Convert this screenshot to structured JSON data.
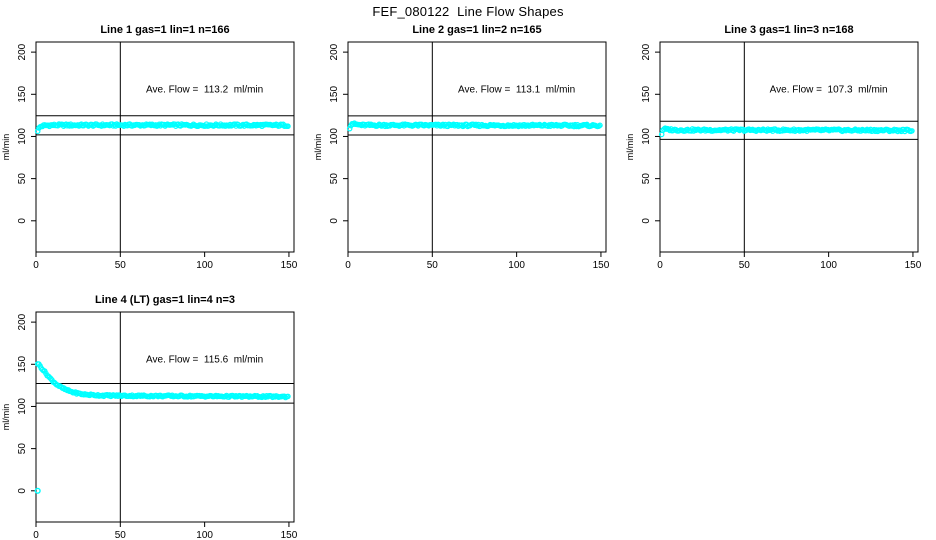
{
  "header": {
    "title": "FEF_080122  Line Flow Shapes"
  },
  "colors": {
    "marker": "#00FFFF",
    "axis": "#000000",
    "background": "#ffffff"
  },
  "chart_data": [
    {
      "type": "scatter",
      "title": "Line 1 gas=1 lin=1 n=166",
      "annotation": "Ave. Flow =  113.2  ml/min",
      "avg_flow": 113.2,
      "n": 166,
      "units": "ml/min",
      "ylabel": "ml/min",
      "xlabel": "",
      "x_ticks": [
        0,
        50,
        100,
        150
      ],
      "y_ticks": [
        0,
        50,
        100,
        150,
        200
      ],
      "x_box_range": [
        0,
        153
      ],
      "y_box_range": [
        -37,
        212
      ],
      "vline_x": 50,
      "hlines": [
        124.5,
        101.9
      ],
      "annotation_pos": [
        100,
        152
      ],
      "x_start": 1,
      "x_end": 150,
      "band_jitter": 1.3,
      "series_profile": [
        [
          1,
          107
        ],
        [
          2,
          110.5
        ],
        [
          3,
          112
        ],
        [
          5,
          113
        ],
        [
          10,
          113.4
        ],
        [
          60,
          113.5
        ],
        [
          150,
          113.3
        ]
      ],
      "extra_points": [],
      "seed": 1
    },
    {
      "type": "scatter",
      "title": "Line 2 gas=1 lin=2 n=165",
      "annotation": "Ave. Flow =  113.1  ml/min",
      "avg_flow": 113.1,
      "n": 165,
      "units": "ml/min",
      "ylabel": "ml/min",
      "xlabel": "",
      "x_ticks": [
        0,
        50,
        100,
        150
      ],
      "y_ticks": [
        0,
        50,
        100,
        150,
        200
      ],
      "x_box_range": [
        0,
        153
      ],
      "y_box_range": [
        -37,
        212
      ],
      "vline_x": 50,
      "hlines": [
        124.4,
        101.8
      ],
      "annotation_pos": [
        100,
        152
      ],
      "x_start": 1,
      "x_end": 150,
      "band_jitter": 1.3,
      "series_profile": [
        [
          1,
          110.5
        ],
        [
          2,
          115.5
        ],
        [
          4,
          114.5
        ],
        [
          8,
          113.4
        ],
        [
          60,
          113.2
        ],
        [
          150,
          113.0
        ]
      ],
      "extra_points": [],
      "seed": 2
    },
    {
      "type": "scatter",
      "title": "Line 3 gas=1 lin=3 n=168",
      "annotation": "Ave. Flow =  107.3  ml/min",
      "avg_flow": 107.3,
      "n": 168,
      "units": "ml/min",
      "ylabel": "ml/min",
      "xlabel": "",
      "x_ticks": [
        0,
        50,
        100,
        150
      ],
      "y_ticks": [
        0,
        50,
        100,
        150,
        200
      ],
      "x_box_range": [
        0,
        153
      ],
      "y_box_range": [
        -37,
        212
      ],
      "vline_x": 50,
      "hlines": [
        118.0,
        96.6
      ],
      "annotation_pos": [
        100,
        152
      ],
      "x_start": 1,
      "x_end": 150,
      "band_jitter": 1.3,
      "series_profile": [
        [
          1,
          103
        ],
        [
          2,
          109.5
        ],
        [
          4,
          108.3
        ],
        [
          10,
          107.6
        ],
        [
          80,
          107.5
        ],
        [
          150,
          107.2
        ]
      ],
      "extra_points": [],
      "seed": 3
    },
    {
      "type": "scatter",
      "title": "Line 4 (LT) gas=1 lin=4 n=3",
      "annotation": "Ave. Flow =  115.6  ml/min",
      "avg_flow": 115.6,
      "n": 3,
      "units": "ml/min",
      "ylabel": "ml/min",
      "xlabel": "",
      "x_ticks": [
        0,
        50,
        100,
        150
      ],
      "y_ticks": [
        0,
        50,
        100,
        150,
        200
      ],
      "x_box_range": [
        0,
        153
      ],
      "y_box_range": [
        -37,
        212
      ],
      "vline_x": 50,
      "hlines": [
        127.2,
        104.0
      ],
      "annotation_pos": [
        100,
        152
      ],
      "x_start": 1,
      "x_end": 150,
      "band_jitter": 1.0,
      "series_profile": [
        [
          1,
          151
        ],
        [
          2,
          149
        ],
        [
          4,
          144
        ],
        [
          6,
          139
        ],
        [
          9,
          132
        ],
        [
          12,
          126.5
        ],
        [
          15,
          122.5
        ],
        [
          18,
          119.5
        ],
        [
          22,
          116.8
        ],
        [
          26,
          115
        ],
        [
          30,
          114
        ],
        [
          40,
          113
        ],
        [
          60,
          112.6
        ],
        [
          100,
          112.2
        ],
        [
          150,
          111.6
        ]
      ],
      "extra_points": [
        [
          1,
          0
        ]
      ],
      "seed": 4
    }
  ]
}
